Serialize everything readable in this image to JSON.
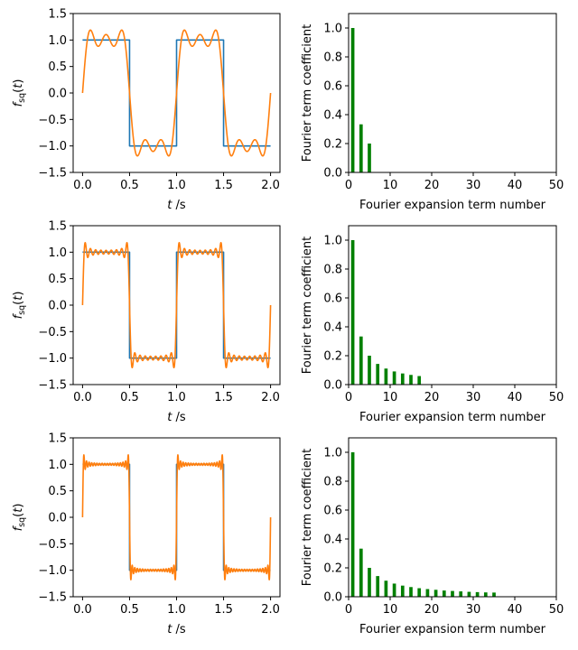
{
  "chart_data": [
    {
      "type": "line",
      "panel": "square-wave-3-terms",
      "xlabel": "t /s",
      "ylabel": "f_sq(t)",
      "xlim": [
        -0.1,
        2.1
      ],
      "ylim": [
        -1.5,
        1.5
      ],
      "xticks": [
        "0.0",
        "0.5",
        "1.0",
        "1.5",
        "2.0"
      ],
      "yticks": [
        "-1.5",
        "-1.0",
        "-0.5",
        "0.0",
        "0.5",
        "1.0",
        "1.5"
      ],
      "grid": false,
      "series": [
        {
          "kind": "square_wave",
          "color": "#1f77b4",
          "x_range": [
            0,
            2
          ],
          "period": 1.0,
          "amplitude": 1.0
        },
        {
          "kind": "fourier_sum",
          "color": "#ff7f0e",
          "x_range": [
            0,
            2
          ],
          "period": 1.0,
          "harmonics": [
            1,
            3,
            5
          ],
          "coefficients": [
            1.0,
            0.333,
            0.2
          ]
        }
      ]
    },
    {
      "type": "bar",
      "panel": "coefficients-3-terms",
      "xlabel": "Fourier expansion term number",
      "ylabel": "Fourier term coefficient",
      "xlim": [
        0,
        50
      ],
      "ylim": [
        0,
        1.1
      ],
      "xticks": [
        "0",
        "10",
        "20",
        "30",
        "40",
        "50"
      ],
      "yticks": [
        "0.0",
        "0.2",
        "0.4",
        "0.6",
        "0.8",
        "1.0"
      ],
      "grid": false,
      "bar_color": "#008000",
      "x": [
        1,
        3,
        5
      ],
      "values": [
        1.0,
        0.333,
        0.2
      ]
    },
    {
      "type": "line",
      "panel": "square-wave-9-terms",
      "xlabel": "t /s",
      "ylabel": "f_sq(t)",
      "xlim": [
        -0.1,
        2.1
      ],
      "ylim": [
        -1.5,
        1.5
      ],
      "xticks": [
        "0.0",
        "0.5",
        "1.0",
        "1.5",
        "2.0"
      ],
      "yticks": [
        "-1.5",
        "-1.0",
        "-0.5",
        "0.0",
        "0.5",
        "1.0",
        "1.5"
      ],
      "grid": false,
      "series": [
        {
          "kind": "square_wave",
          "color": "#1f77b4",
          "x_range": [
            0,
            2
          ],
          "period": 1.0,
          "amplitude": 1.0
        },
        {
          "kind": "fourier_sum",
          "color": "#ff7f0e",
          "x_range": [
            0,
            2
          ],
          "period": 1.0,
          "harmonics": [
            1,
            3,
            5,
            7,
            9,
            11,
            13,
            15,
            17
          ],
          "coefficients": [
            1.0,
            0.333,
            0.2,
            0.143,
            0.111,
            0.091,
            0.077,
            0.067,
            0.059
          ]
        }
      ]
    },
    {
      "type": "bar",
      "panel": "coefficients-9-terms",
      "xlabel": "Fourier expansion term number",
      "ylabel": "Fourier term coefficient",
      "xlim": [
        0,
        50
      ],
      "ylim": [
        0,
        1.1
      ],
      "xticks": [
        "0",
        "10",
        "20",
        "30",
        "40",
        "50"
      ],
      "yticks": [
        "0.0",
        "0.2",
        "0.4",
        "0.6",
        "0.8",
        "1.0"
      ],
      "grid": false,
      "bar_color": "#008000",
      "x": [
        1,
        3,
        5,
        7,
        9,
        11,
        13,
        15,
        17
      ],
      "values": [
        1.0,
        0.333,
        0.2,
        0.143,
        0.111,
        0.091,
        0.077,
        0.067,
        0.059
      ]
    },
    {
      "type": "line",
      "panel": "square-wave-18-terms",
      "xlabel": "t /s",
      "ylabel": "f_sq(t)",
      "xlim": [
        -0.1,
        2.1
      ],
      "ylim": [
        -1.5,
        1.5
      ],
      "xticks": [
        "0.0",
        "0.5",
        "1.0",
        "1.5",
        "2.0"
      ],
      "yticks": [
        "-1.5",
        "-1.0",
        "-0.5",
        "0.0",
        "0.5",
        "1.0",
        "1.5"
      ],
      "grid": false,
      "series": [
        {
          "kind": "square_wave",
          "color": "#1f77b4",
          "x_range": [
            0,
            2
          ],
          "period": 1.0,
          "amplitude": 1.0
        },
        {
          "kind": "fourier_sum",
          "color": "#ff7f0e",
          "x_range": [
            0,
            2
          ],
          "period": 1.0,
          "harmonics": [
            1,
            3,
            5,
            7,
            9,
            11,
            13,
            15,
            17,
            19,
            21,
            23,
            25,
            27,
            29,
            31,
            33,
            35
          ],
          "coefficients": [
            1.0,
            0.333,
            0.2,
            0.143,
            0.111,
            0.091,
            0.077,
            0.067,
            0.059,
            0.053,
            0.048,
            0.043,
            0.04,
            0.037,
            0.034,
            0.032,
            0.03,
            0.029
          ]
        }
      ]
    },
    {
      "type": "bar",
      "panel": "coefficients-18-terms",
      "xlabel": "Fourier expansion term number",
      "ylabel": "Fourier term coefficient",
      "xlim": [
        0,
        50
      ],
      "ylim": [
        0,
        1.1
      ],
      "xticks": [
        "0",
        "10",
        "20",
        "30",
        "40",
        "50"
      ],
      "yticks": [
        "0.0",
        "0.2",
        "0.4",
        "0.6",
        "0.8",
        "1.0"
      ],
      "grid": false,
      "bar_color": "#008000",
      "x": [
        1,
        3,
        5,
        7,
        9,
        11,
        13,
        15,
        17,
        19,
        21,
        23,
        25,
        27,
        29,
        31,
        33,
        35
      ],
      "values": [
        1.0,
        0.333,
        0.2,
        0.143,
        0.111,
        0.091,
        0.077,
        0.067,
        0.059,
        0.053,
        0.048,
        0.043,
        0.04,
        0.037,
        0.034,
        0.032,
        0.03,
        0.029
      ]
    }
  ]
}
